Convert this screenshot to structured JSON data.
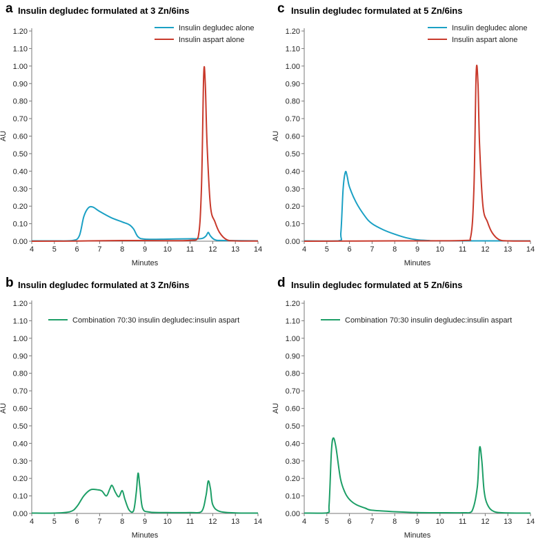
{
  "chart_data": [
    {
      "type": "line",
      "panel": "a",
      "title": "Insulin degludec formulated at 3 Zn/6ins",
      "xlabel": "Minutes",
      "ylabel": "AU",
      "xlim": [
        4,
        14
      ],
      "ylim": [
        0,
        1.2
      ],
      "xticks": [
        "4",
        "5",
        "6",
        "7",
        "8",
        "9",
        "10",
        "11",
        "12",
        "13",
        "14"
      ],
      "yticks": [
        "0.00",
        "0.10",
        "0.20",
        "0.30",
        "0.40",
        "0.50",
        "0.60",
        "0.70",
        "0.80",
        "0.90",
        "1.00",
        "1.10",
        "1.20"
      ],
      "legend_position": "top-right",
      "series": [
        {
          "name": "Insulin degludec alone",
          "color": "#1aa0c4",
          "points": [
            [
              4,
              0.002
            ],
            [
              5,
              0.002
            ],
            [
              5.8,
              0.004
            ],
            [
              6.1,
              0.03
            ],
            [
              6.3,
              0.14
            ],
            [
              6.5,
              0.19
            ],
            [
              6.7,
              0.195
            ],
            [
              7.0,
              0.17
            ],
            [
              7.5,
              0.135
            ],
            [
              8.0,
              0.11
            ],
            [
              8.3,
              0.095
            ],
            [
              8.5,
              0.07
            ],
            [
              8.7,
              0.025
            ],
            [
              9.0,
              0.012
            ],
            [
              10,
              0.012
            ],
            [
              11,
              0.014
            ],
            [
              11.5,
              0.015
            ],
            [
              11.7,
              0.03
            ],
            [
              11.8,
              0.05
            ],
            [
              11.9,
              0.03
            ],
            [
              12.1,
              0.008
            ],
            [
              12.5,
              0.004
            ],
            [
              14,
              0.002
            ]
          ]
        },
        {
          "name": "Insulin aspart alone",
          "color": "#c8392b",
          "points": [
            [
              4,
              0.0
            ],
            [
              6,
              0.001
            ],
            [
              8,
              0.004
            ],
            [
              10,
              0.003
            ],
            [
              11,
              0.005
            ],
            [
              11.35,
              0.02
            ],
            [
              11.5,
              0.3
            ],
            [
              11.6,
              0.95
            ],
            [
              11.67,
              0.9
            ],
            [
              11.75,
              0.55
            ],
            [
              11.9,
              0.2
            ],
            [
              12.1,
              0.11
            ],
            [
              12.3,
              0.05
            ],
            [
              12.6,
              0.01
            ],
            [
              13,
              0.002
            ],
            [
              14,
              0.001
            ]
          ]
        }
      ]
    },
    {
      "type": "line",
      "panel": "c",
      "title": "Insulin degludec formulated at 5 Zn/6ins",
      "xlabel": "Minutes",
      "ylabel": "AU",
      "xlim": [
        4,
        14
      ],
      "ylim": [
        0,
        1.2
      ],
      "xticks": [
        "4",
        "5",
        "6",
        "7",
        "8",
        "9",
        "10",
        "11",
        "12",
        "13",
        "14"
      ],
      "yticks": [
        "0.00",
        "0.10",
        "0.20",
        "0.30",
        "0.40",
        "0.50",
        "0.60",
        "0.70",
        "0.80",
        "0.90",
        "1.00",
        "1.10",
        "1.20"
      ],
      "legend_position": "top-right",
      "series": [
        {
          "name": "Insulin degludec alone",
          "color": "#1aa0c4",
          "points": [
            [
              4,
              0.002
            ],
            [
              5.5,
              0.002
            ],
            [
              5.62,
              0.05
            ],
            [
              5.72,
              0.3
            ],
            [
              5.82,
              0.395
            ],
            [
              5.9,
              0.37
            ],
            [
              6.0,
              0.31
            ],
            [
              6.3,
              0.22
            ],
            [
              6.7,
              0.14
            ],
            [
              7.0,
              0.1
            ],
            [
              7.5,
              0.065
            ],
            [
              8.0,
              0.04
            ],
            [
              8.5,
              0.02
            ],
            [
              9.0,
              0.008
            ],
            [
              9.5,
              0.004
            ],
            [
              10,
              0.002
            ],
            [
              14,
              0.002
            ]
          ]
        },
        {
          "name": "Insulin aspart alone",
          "color": "#c8392b",
          "points": [
            [
              4,
              0.0
            ],
            [
              8,
              0.002
            ],
            [
              11.0,
              0.004
            ],
            [
              11.35,
              0.02
            ],
            [
              11.5,
              0.3
            ],
            [
              11.6,
              0.96
            ],
            [
              11.68,
              0.9
            ],
            [
              11.75,
              0.55
            ],
            [
              11.9,
              0.2
            ],
            [
              12.1,
              0.11
            ],
            [
              12.3,
              0.05
            ],
            [
              12.6,
              0.01
            ],
            [
              13,
              0.002
            ],
            [
              14,
              0.001
            ]
          ]
        }
      ]
    },
    {
      "type": "line",
      "panel": "b",
      "title": "Insulin degludec formulated at 3 Zn/6ins",
      "xlabel": "Minutes",
      "ylabel": "AU",
      "xlim": [
        4,
        14
      ],
      "ylim": [
        0,
        1.2
      ],
      "xticks": [
        "4",
        "5",
        "6",
        "7",
        "8",
        "9",
        "10",
        "11",
        "12",
        "13",
        "14"
      ],
      "yticks": [
        "0.00",
        "0.10",
        "0.20",
        "0.30",
        "0.40",
        "0.50",
        "0.60",
        "0.70",
        "0.80",
        "0.90",
        "1.00",
        "1.10",
        "1.20"
      ],
      "legend_position": "top-left",
      "series": [
        {
          "name": "Combination 70:30 insulin degludec:insulin aspart",
          "color": "#1c9e66",
          "points": [
            [
              4,
              0.002
            ],
            [
              5,
              0.002
            ],
            [
              5.7,
              0.01
            ],
            [
              6.0,
              0.04
            ],
            [
              6.3,
              0.1
            ],
            [
              6.6,
              0.135
            ],
            [
              6.9,
              0.135
            ],
            [
              7.1,
              0.128
            ],
            [
              7.3,
              0.1
            ],
            [
              7.45,
              0.14
            ],
            [
              7.55,
              0.16
            ],
            [
              7.7,
              0.12
            ],
            [
              7.85,
              0.095
            ],
            [
              8.0,
              0.13
            ],
            [
              8.12,
              0.08
            ],
            [
              8.3,
              0.02
            ],
            [
              8.5,
              0.015
            ],
            [
              8.62,
              0.12
            ],
            [
              8.7,
              0.23
            ],
            [
              8.78,
              0.15
            ],
            [
              8.9,
              0.03
            ],
            [
              9.2,
              0.008
            ],
            [
              10,
              0.005
            ],
            [
              11,
              0.005
            ],
            [
              11.5,
              0.01
            ],
            [
              11.7,
              0.1
            ],
            [
              11.8,
              0.185
            ],
            [
              11.9,
              0.14
            ],
            [
              12.0,
              0.05
            ],
            [
              12.3,
              0.012
            ],
            [
              13,
              0.003
            ],
            [
              14,
              0.002
            ]
          ]
        }
      ]
    },
    {
      "type": "line",
      "panel": "d",
      "title": "Insulin degludec formulated at 5 Zn/6ins",
      "xlabel": "Minutes",
      "ylabel": "AU",
      "xlim": [
        4,
        14
      ],
      "ylim": [
        0,
        1.2
      ],
      "xticks": [
        "4",
        "5",
        "6",
        "7",
        "8",
        "9",
        "10",
        "11",
        "12",
        "13",
        "14"
      ],
      "yticks": [
        "0.00",
        "0.10",
        "0.20",
        "0.30",
        "0.40",
        "0.50",
        "0.60",
        "0.70",
        "0.80",
        "0.90",
        "1.00",
        "1.10",
        "1.20"
      ],
      "legend_position": "top-left",
      "series": [
        {
          "name": "Combination 70:30 insulin degludec:insulin aspart",
          "color": "#1c9e66",
          "points": [
            [
              4,
              0.002
            ],
            [
              5.0,
              0.003
            ],
            [
              5.1,
              0.05
            ],
            [
              5.2,
              0.35
            ],
            [
              5.28,
              0.43
            ],
            [
              5.4,
              0.38
            ],
            [
              5.6,
              0.2
            ],
            [
              5.8,
              0.12
            ],
            [
              6.0,
              0.08
            ],
            [
              6.3,
              0.05
            ],
            [
              6.7,
              0.03
            ],
            [
              7.0,
              0.018
            ],
            [
              8,
              0.01
            ],
            [
              9,
              0.005
            ],
            [
              10,
              0.004
            ],
            [
              11,
              0.004
            ],
            [
              11.4,
              0.01
            ],
            [
              11.65,
              0.15
            ],
            [
              11.75,
              0.375
            ],
            [
              11.85,
              0.3
            ],
            [
              11.95,
              0.13
            ],
            [
              12.1,
              0.05
            ],
            [
              12.4,
              0.01
            ],
            [
              13,
              0.003
            ],
            [
              14,
              0.002
            ]
          ]
        }
      ]
    }
  ]
}
